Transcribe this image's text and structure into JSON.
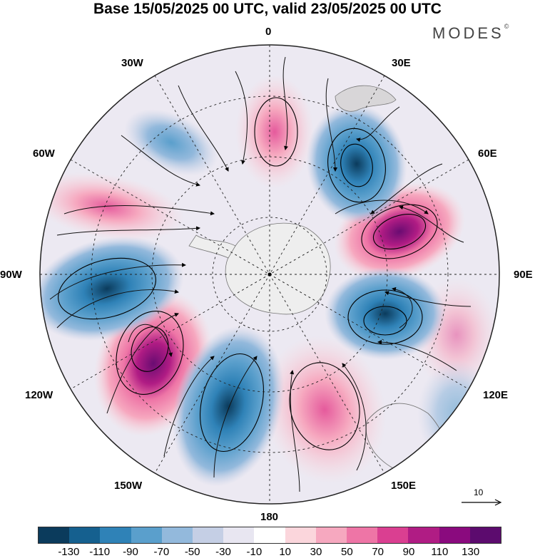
{
  "title": "Base 15/05/2025 00 UTC, valid 23/05/2025 00 UTC",
  "brand": {
    "text": "MODES",
    "mark": "©"
  },
  "longitude_labels": {
    "deg0": "0",
    "deg30e": "30E",
    "deg60e": "60E",
    "deg90e": "90E",
    "deg120e": "120E",
    "deg150e": "150E",
    "deg180": "180",
    "deg150w": "150W",
    "deg120w": "120W",
    "deg90w": "90W",
    "deg60w": "60W",
    "deg30w": "30W"
  },
  "wind_scale": {
    "value": "10"
  },
  "colorbar": {
    "colors": [
      "#0b3b5c",
      "#15608f",
      "#2f82b7",
      "#5a9fcc",
      "#93b9dc",
      "#c5cfe5",
      "#e8e6f1",
      "#ffffff",
      "#fbd6dc",
      "#f6a8bf",
      "#ee75a6",
      "#da3f91",
      "#b01c84",
      "#8a0a7e",
      "#5c0b6e"
    ],
    "ticks": [
      "-130",
      "-110",
      "-90",
      "-70",
      "-50",
      "-30",
      "-10",
      "10",
      "30",
      "50",
      "70",
      "90",
      "110",
      "130"
    ]
  },
  "anomaly_centers": [
    {
      "lon": 10,
      "value": 75
    },
    {
      "lon": 40,
      "value": -100
    },
    {
      "lon": 70,
      "value": 130
    },
    {
      "lon": 100,
      "value": -120
    },
    {
      "lon": 145,
      "value": 70
    },
    {
      "lon": -165,
      "value": -90
    },
    {
      "lon": -125,
      "value": 120
    },
    {
      "lon": -95,
      "value": -100
    },
    {
      "lon": -65,
      "value": 60
    },
    {
      "lon": -30,
      "value": -50
    }
  ]
}
